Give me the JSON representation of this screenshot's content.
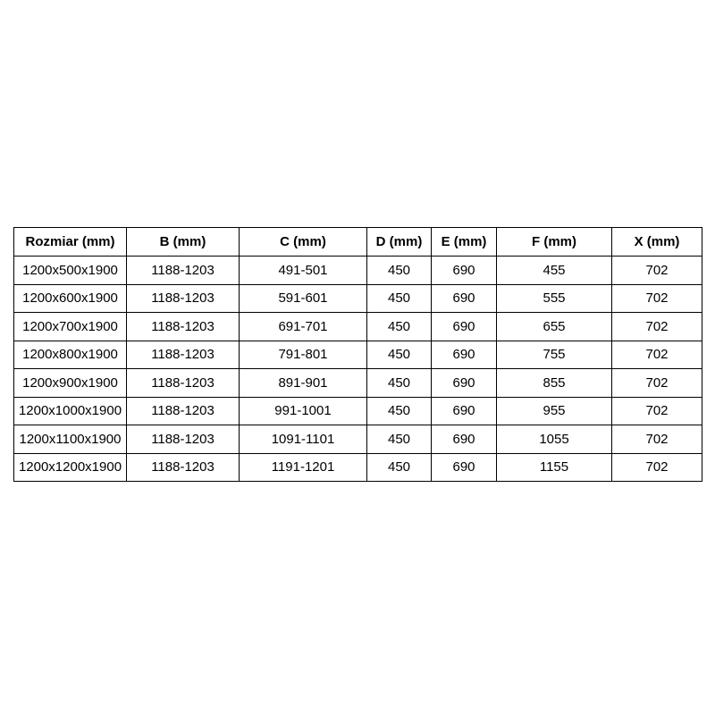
{
  "colors": {
    "background": "#ffffff",
    "table_border": "#000000",
    "text": "#000000"
  },
  "table": {
    "headers": [
      "Rozmiar (mm)",
      "B (mm)",
      "C (mm)",
      "D (mm)",
      "E (mm)",
      "F (mm)",
      "X (mm)"
    ],
    "rows": [
      [
        "1200x500x1900",
        "1188-1203",
        "491-501",
        "450",
        "690",
        "455",
        "702"
      ],
      [
        "1200x600x1900",
        "1188-1203",
        "591-601",
        "450",
        "690",
        "555",
        "702"
      ],
      [
        "1200x700x1900",
        "1188-1203",
        "691-701",
        "450",
        "690",
        "655",
        "702"
      ],
      [
        "1200x800x1900",
        "1188-1203",
        "791-801",
        "450",
        "690",
        "755",
        "702"
      ],
      [
        "1200x900x1900",
        "1188-1203",
        "891-901",
        "450",
        "690",
        "855",
        "702"
      ],
      [
        "1200x1000x1900",
        "1188-1203",
        "991-1001",
        "450",
        "690",
        "955",
        "702"
      ],
      [
        "1200x1100x1900",
        "1188-1203",
        "1091-1101",
        "450",
        "690",
        "1055",
        "702"
      ],
      [
        "1200x1200x1900",
        "1188-1203",
        "1191-1201",
        "450",
        "690",
        "1155",
        "702"
      ]
    ]
  }
}
